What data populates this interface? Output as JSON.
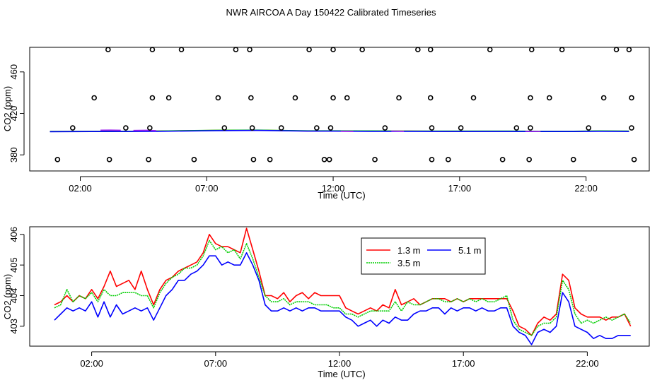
{
  "page_title": "NWR AIRCOA A  Day 150422  Calibrated Timeseries",
  "chart_data": [
    {
      "type": "scatter",
      "title": "",
      "xlabel": "Time (UTC)",
      "ylabel": "CO2 (ppm)",
      "xlim": [
        0.0,
        24.5
      ],
      "ylim": [
        364.5,
        483.7
      ],
      "x_ticks": [
        2,
        7,
        12,
        17,
        22
      ],
      "x_tick_labels": [
        "02:00",
        "07:00",
        "12:00",
        "17:00",
        "22:00"
      ],
      "y_ticks": [
        380,
        420,
        460
      ],
      "y_tick_labels": [
        "380",
        "420",
        "460"
      ],
      "marker_color": "#000000",
      "points": [
        [
          3.1,
          481.5
        ],
        [
          4.85,
          481.5
        ],
        [
          6.0,
          481.5
        ],
        [
          8.15,
          481.5
        ],
        [
          8.7,
          481.5
        ],
        [
          11.05,
          481.5
        ],
        [
          12.0,
          481.5
        ],
        [
          13.15,
          481.5
        ],
        [
          15.35,
          481.5
        ],
        [
          15.85,
          481.5
        ],
        [
          18.2,
          481.5
        ],
        [
          19.85,
          481.5
        ],
        [
          21.05,
          481.5
        ],
        [
          23.2,
          481.5
        ],
        [
          23.7,
          481.5
        ],
        [
          2.55,
          435.0
        ],
        [
          4.85,
          435.0
        ],
        [
          5.5,
          435.0
        ],
        [
          7.45,
          435.0
        ],
        [
          8.75,
          435.0
        ],
        [
          10.5,
          435.0
        ],
        [
          12.0,
          435.0
        ],
        [
          12.55,
          435.0
        ],
        [
          14.6,
          435.0
        ],
        [
          15.85,
          435.0
        ],
        [
          17.55,
          435.0
        ],
        [
          19.8,
          435.0
        ],
        [
          20.55,
          435.0
        ],
        [
          22.7,
          435.0
        ],
        [
          23.8,
          435.0
        ],
        [
          1.7,
          406.0
        ],
        [
          3.8,
          406.0
        ],
        [
          4.75,
          406.0
        ],
        [
          7.7,
          406.0
        ],
        [
          8.8,
          406.0
        ],
        [
          9.95,
          406.0
        ],
        [
          11.35,
          406.0
        ],
        [
          11.9,
          406.0
        ],
        [
          14.05,
          406.0
        ],
        [
          15.9,
          406.0
        ],
        [
          17.05,
          406.0
        ],
        [
          19.25,
          406.0
        ],
        [
          19.8,
          406.0
        ],
        [
          22.1,
          406.0
        ],
        [
          23.8,
          406.0
        ],
        [
          1.1,
          375.5
        ],
        [
          3.15,
          375.5
        ],
        [
          4.7,
          375.5
        ],
        [
          6.5,
          375.5
        ],
        [
          8.85,
          375.5
        ],
        [
          9.5,
          375.5
        ],
        [
          11.65,
          375.5
        ],
        [
          11.85,
          375.5
        ],
        [
          13.65,
          375.5
        ],
        [
          15.9,
          375.5
        ],
        [
          16.55,
          375.5
        ],
        [
          18.7,
          375.5
        ],
        [
          19.75,
          375.5
        ],
        [
          21.5,
          375.5
        ],
        [
          23.9,
          375.5
        ]
      ],
      "series": [
        {
          "name": "1.3 m",
          "color": "#ff0000",
          "x": [
            0.8,
            2.5,
            4.0,
            5.0,
            7.4,
            9.0,
            11.0,
            12.0,
            13.5,
            15.0,
            16.5,
            17.5,
            19.0,
            20.5,
            21.5,
            22.5,
            23.7
          ],
          "values": [
            402.5,
            402.6,
            402.8,
            402.9,
            403.6,
            403.8,
            403.0,
            403.1,
            403.0,
            402.9,
            402.7,
            402.8,
            402.8,
            402.7,
            402.6,
            403.0,
            402.8
          ]
        },
        {
          "name": "3.5 m",
          "color": "#00cd00",
          "x": [
            0.8,
            2.5,
            4.0,
            5.0,
            7.4,
            9.0,
            11.0,
            12.0,
            13.5,
            15.0,
            16.5,
            17.5,
            19.0,
            20.5,
            21.5,
            22.5,
            23.7
          ],
          "values": [
            402.6,
            402.7,
            402.8,
            403.0,
            403.7,
            403.9,
            403.2,
            403.2,
            403.1,
            403.0,
            402.9,
            402.9,
            402.9,
            402.8,
            402.8,
            403.1,
            402.9
          ]
        },
        {
          "name": "5.1 m",
          "color": "#0000ff",
          "x": [
            0.8,
            2.5,
            4.0,
            5.0,
            7.4,
            9.0,
            11.0,
            12.0,
            13.5,
            15.0,
            16.5,
            17.5,
            19.0,
            20.5,
            21.5,
            22.5,
            23.7
          ],
          "values": [
            402.4,
            402.5,
            402.6,
            402.7,
            403.4,
            403.6,
            402.9,
            402.9,
            402.7,
            402.7,
            402.6,
            402.6,
            402.6,
            402.5,
            402.5,
            402.8,
            402.6
          ]
        },
        {
          "name": "",
          "color": "#a020f0",
          "x": [
            2.8,
            3.2,
            3.6
          ],
          "values": [
            403.8,
            403.9,
            403.7
          ]
        },
        {
          "name": "",
          "color": "#a020f0",
          "x": [
            4.1,
            4.6,
            5.0
          ],
          "values": [
            403.5,
            403.7,
            403.4
          ]
        },
        {
          "name": "",
          "color": "#a020f0",
          "x": [
            12.3,
            12.8
          ],
          "values": [
            402.7,
            402.6
          ]
        },
        {
          "name": "",
          "color": "#a020f0",
          "x": [
            14.3,
            14.8
          ],
          "values": [
            403.0,
            402.8
          ]
        },
        {
          "name": "",
          "color": "#a020f0",
          "x": [
            19.6,
            20.2
          ],
          "values": [
            402.7,
            402.5
          ]
        }
      ]
    },
    {
      "type": "line",
      "title": "",
      "xlabel": "Time (UTC)",
      "ylabel": "CO2 (ppm)",
      "xlim": [
        -0.5,
        24.5
      ],
      "ylim": [
        402.35,
        406.25
      ],
      "x_ticks": [
        2,
        7,
        12,
        17,
        22
      ],
      "x_tick_labels": [
        "02:00",
        "07:00",
        "12:00",
        "17:00",
        "22:00"
      ],
      "y_ticks": [
        403,
        404,
        405,
        406
      ],
      "y_tick_labels": [
        "403",
        "404",
        "405",
        "406"
      ],
      "legend": {
        "position": "top-center",
        "columns": 2
      },
      "x": [
        0.5,
        0.75,
        1.0,
        1.25,
        1.5,
        1.75,
        2.0,
        2.25,
        2.5,
        2.75,
        3.0,
        3.25,
        3.5,
        3.75,
        4.0,
        4.25,
        4.5,
        4.75,
        5.0,
        5.25,
        5.5,
        5.75,
        6.0,
        6.25,
        6.5,
        6.75,
        7.0,
        7.25,
        7.5,
        7.75,
        8.0,
        8.25,
        8.5,
        8.75,
        9.0,
        9.25,
        9.5,
        9.75,
        10.0,
        10.25,
        10.5,
        10.75,
        11.0,
        11.25,
        11.5,
        11.75,
        12.0,
        12.25,
        12.5,
        12.75,
        13.0,
        13.25,
        13.5,
        13.75,
        14.0,
        14.25,
        14.5,
        14.75,
        15.0,
        15.25,
        15.5,
        15.75,
        16.0,
        16.25,
        16.5,
        16.75,
        17.0,
        17.25,
        17.5,
        17.75,
        18.0,
        18.25,
        18.5,
        18.75,
        19.0,
        19.25,
        19.5,
        19.75,
        20.0,
        20.25,
        20.5,
        20.75,
        21.0,
        21.25,
        21.5,
        21.75,
        22.0,
        22.25,
        22.5,
        22.75,
        23.0,
        23.25,
        23.5,
        23.75
      ],
      "series": [
        {
          "name": "1.3 m",
          "color": "#ff0000",
          "values": [
            403.7,
            403.8,
            404.0,
            403.8,
            404.0,
            403.9,
            404.2,
            403.9,
            404.3,
            404.8,
            404.3,
            404.4,
            404.5,
            404.2,
            404.8,
            404.2,
            403.7,
            404.2,
            404.5,
            404.6,
            404.8,
            404.9,
            405.0,
            405.1,
            405.4,
            406.0,
            405.7,
            405.6,
            405.6,
            405.5,
            405.4,
            406.2,
            405.5,
            404.8,
            404.0,
            404.0,
            403.9,
            404.1,
            403.8,
            404.0,
            404.1,
            403.9,
            404.1,
            404.0,
            404.0,
            404.0,
            404.0,
            403.6,
            403.5,
            403.4,
            403.5,
            403.6,
            403.5,
            403.7,
            403.6,
            404.2,
            403.7,
            403.8,
            403.9,
            403.7,
            403.8,
            403.9,
            403.9,
            403.9,
            403.8,
            403.9,
            403.8,
            403.9,
            403.9,
            403.9,
            403.9,
            403.9,
            403.9,
            403.9,
            403.5,
            403.0,
            402.9,
            402.7,
            403.1,
            403.3,
            403.2,
            403.4,
            404.7,
            404.5,
            403.6,
            403.4,
            403.3,
            403.3,
            403.3,
            403.2,
            403.3,
            403.3,
            403.4,
            403.0
          ]
        },
        {
          "name": "3.5 m",
          "color": "#00cd00",
          "values": [
            403.6,
            403.7,
            404.2,
            403.8,
            404.0,
            403.9,
            404.1,
            403.8,
            404.2,
            404.0,
            404.0,
            404.1,
            404.1,
            404.1,
            404.0,
            404.0,
            403.6,
            404.1,
            404.4,
            404.6,
            404.7,
            404.9,
            404.9,
            405.0,
            405.3,
            405.8,
            405.5,
            405.6,
            405.4,
            405.5,
            405.2,
            405.7,
            405.2,
            404.6,
            404.0,
            403.8,
            403.8,
            403.9,
            403.7,
            403.8,
            403.8,
            403.8,
            403.7,
            403.7,
            403.7,
            403.6,
            403.6,
            403.4,
            403.4,
            403.3,
            403.4,
            403.5,
            403.5,
            403.5,
            403.5,
            403.8,
            403.5,
            403.8,
            403.7,
            403.7,
            403.8,
            403.9,
            403.9,
            403.8,
            403.8,
            403.9,
            403.8,
            403.9,
            403.8,
            403.9,
            403.8,
            403.8,
            403.9,
            404.0,
            403.2,
            402.9,
            402.8,
            402.7,
            403.0,
            403.1,
            403.1,
            403.3,
            404.5,
            404.2,
            403.4,
            403.1,
            403.2,
            403.1,
            403.2,
            403.3,
            403.2,
            403.3,
            403.4,
            403.1
          ]
        },
        {
          "name": "5.1 m",
          "color": "#0000ff",
          "values": [
            403.2,
            403.4,
            403.6,
            403.5,
            403.6,
            403.5,
            403.8,
            403.3,
            403.8,
            403.3,
            403.7,
            403.4,
            403.5,
            403.6,
            403.5,
            403.6,
            403.2,
            403.6,
            404.0,
            404.2,
            404.5,
            404.5,
            404.7,
            404.8,
            405.0,
            405.3,
            405.3,
            405.0,
            405.1,
            405.0,
            405.0,
            405.4,
            405.0,
            404.5,
            403.7,
            403.5,
            403.5,
            403.6,
            403.5,
            403.6,
            403.5,
            403.6,
            403.6,
            403.5,
            403.5,
            403.5,
            403.5,
            403.3,
            403.2,
            403.0,
            403.1,
            403.2,
            403.0,
            403.2,
            403.1,
            403.3,
            403.2,
            403.2,
            403.4,
            403.5,
            403.5,
            403.6,
            403.6,
            403.4,
            403.6,
            403.5,
            403.6,
            403.6,
            403.5,
            403.6,
            403.5,
            403.5,
            403.6,
            403.6,
            403.0,
            402.8,
            402.7,
            402.4,
            402.8,
            402.9,
            402.8,
            403.0,
            404.1,
            403.8,
            403.0,
            402.9,
            402.8,
            402.6,
            402.7,
            402.6,
            402.6,
            402.7,
            402.7,
            402.7
          ]
        }
      ]
    }
  ]
}
